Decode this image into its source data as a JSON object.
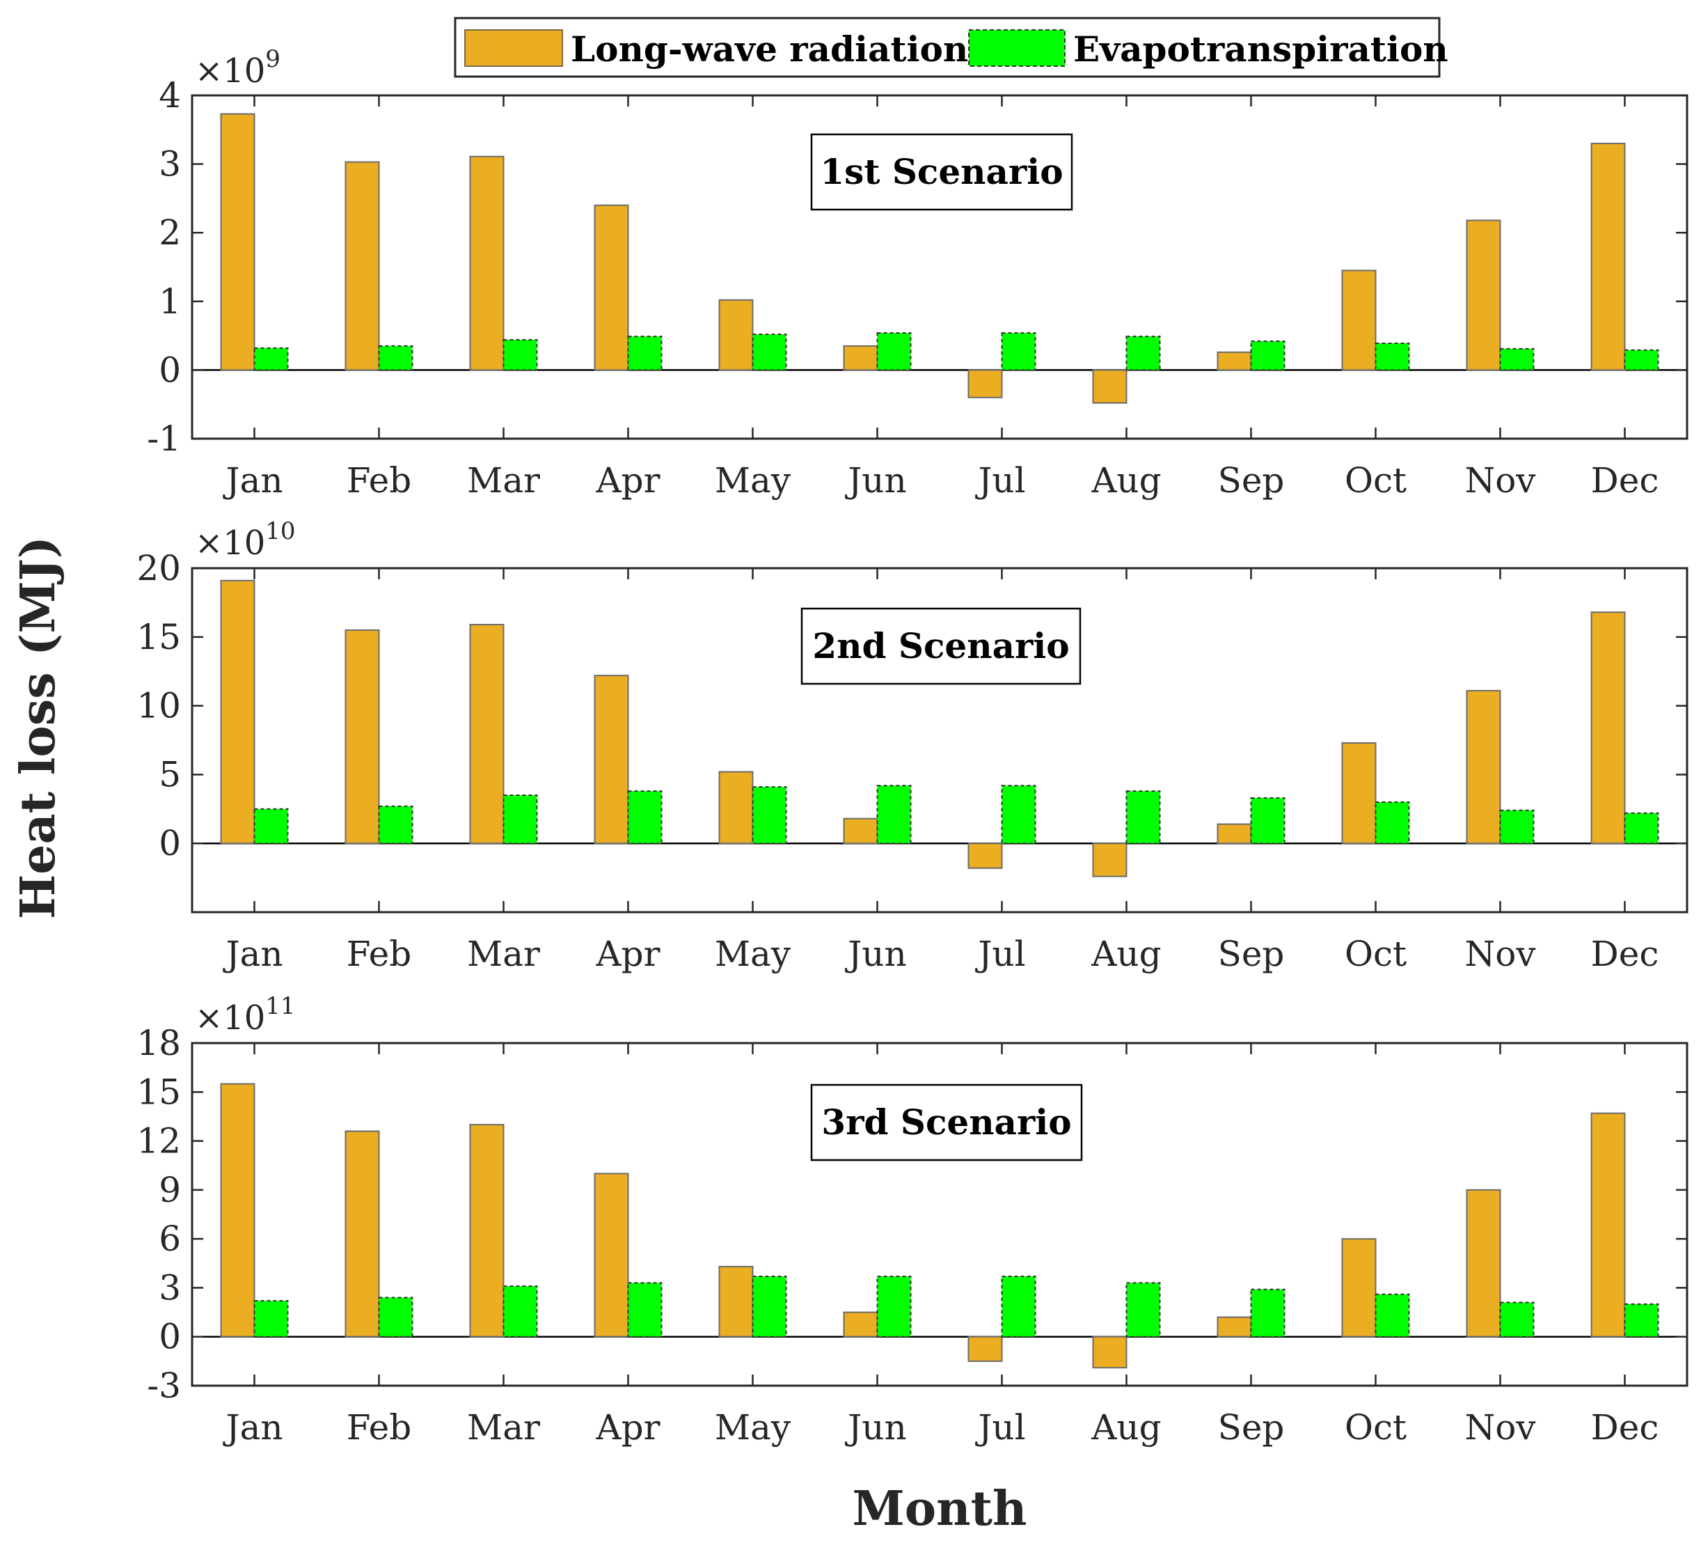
{
  "legend": {
    "series1": "Long-wave radiation",
    "series2": "Evapotranspiration"
  },
  "colors": {
    "longwave": "#EBAD22",
    "evapo": "#00FF00",
    "axis": "#262626",
    "box": "#000000"
  },
  "axis_titles": {
    "y": "Heat loss (MJ)",
    "x": "Month"
  },
  "chart_data": [
    {
      "type": "bar",
      "title": "1st Scenario",
      "multiplier_base": "×10",
      "multiplier_exp": "9",
      "categories": [
        "Jan",
        "Feb",
        "Mar",
        "Apr",
        "May",
        "Jun",
        "Jul",
        "Aug",
        "Sep",
        "Oct",
        "Nov",
        "Dec"
      ],
      "ylim": [
        -1,
        4
      ],
      "yticks": [
        -1,
        0,
        1,
        2,
        3,
        4
      ],
      "ytick_labels": [
        "-1",
        "0",
        "1",
        "2",
        "3",
        "4"
      ],
      "series": [
        {
          "name": "Long-wave radiation",
          "values": [
            3.73,
            3.03,
            3.11,
            2.4,
            1.02,
            0.35,
            -0.4,
            -0.48,
            0.26,
            1.45,
            2.18,
            3.3
          ]
        },
        {
          "name": "Evapotranspiration",
          "values": [
            0.32,
            0.35,
            0.44,
            0.49,
            0.52,
            0.54,
            0.54,
            0.49,
            0.42,
            0.39,
            0.31,
            0.29
          ]
        }
      ]
    },
    {
      "type": "bar",
      "title": "2nd Scenario",
      "multiplier_base": "×10",
      "multiplier_exp": "10",
      "categories": [
        "Jan",
        "Feb",
        "Mar",
        "Apr",
        "May",
        "Jun",
        "Jul",
        "Aug",
        "Sep",
        "Oct",
        "Nov",
        "Dec"
      ],
      "ylim": [
        -5,
        20
      ],
      "yticks": [
        -5,
        0,
        5,
        10,
        15,
        20
      ],
      "ytick_labels": [
        "",
        "0",
        "5",
        "10",
        "15",
        "20"
      ],
      "series": [
        {
          "name": "Long-wave radiation",
          "values": [
            19.1,
            15.5,
            15.9,
            12.2,
            5.2,
            1.8,
            -1.8,
            -2.4,
            1.4,
            7.3,
            11.1,
            16.8
          ]
        },
        {
          "name": "Evapotranspiration",
          "values": [
            2.5,
            2.7,
            3.5,
            3.8,
            4.1,
            4.2,
            4.2,
            3.8,
            3.3,
            3.0,
            2.4,
            2.2
          ]
        }
      ]
    },
    {
      "type": "bar",
      "title": "3rd Scenario",
      "multiplier_base": "×10",
      "multiplier_exp": "11",
      "categories": [
        "Jan",
        "Feb",
        "Mar",
        "Apr",
        "May",
        "Jun",
        "Jul",
        "Aug",
        "Sep",
        "Oct",
        "Nov",
        "Dec"
      ],
      "ylim": [
        -3,
        18
      ],
      "yticks": [
        -3,
        0,
        3,
        6,
        9,
        12,
        15,
        18
      ],
      "ytick_labels": [
        "-3",
        "0",
        "3",
        "6",
        "9",
        "12",
        "15",
        "18"
      ],
      "series": [
        {
          "name": "Long-wave radiation",
          "values": [
            15.5,
            12.6,
            13.0,
            10.0,
            4.3,
            1.5,
            -1.5,
            -1.9,
            1.2,
            6.0,
            9.0,
            13.7
          ]
        },
        {
          "name": "Evapotranspiration",
          "values": [
            2.2,
            2.4,
            3.1,
            3.3,
            3.7,
            3.7,
            3.7,
            3.3,
            2.9,
            2.6,
            2.1,
            2.0
          ]
        }
      ]
    }
  ]
}
